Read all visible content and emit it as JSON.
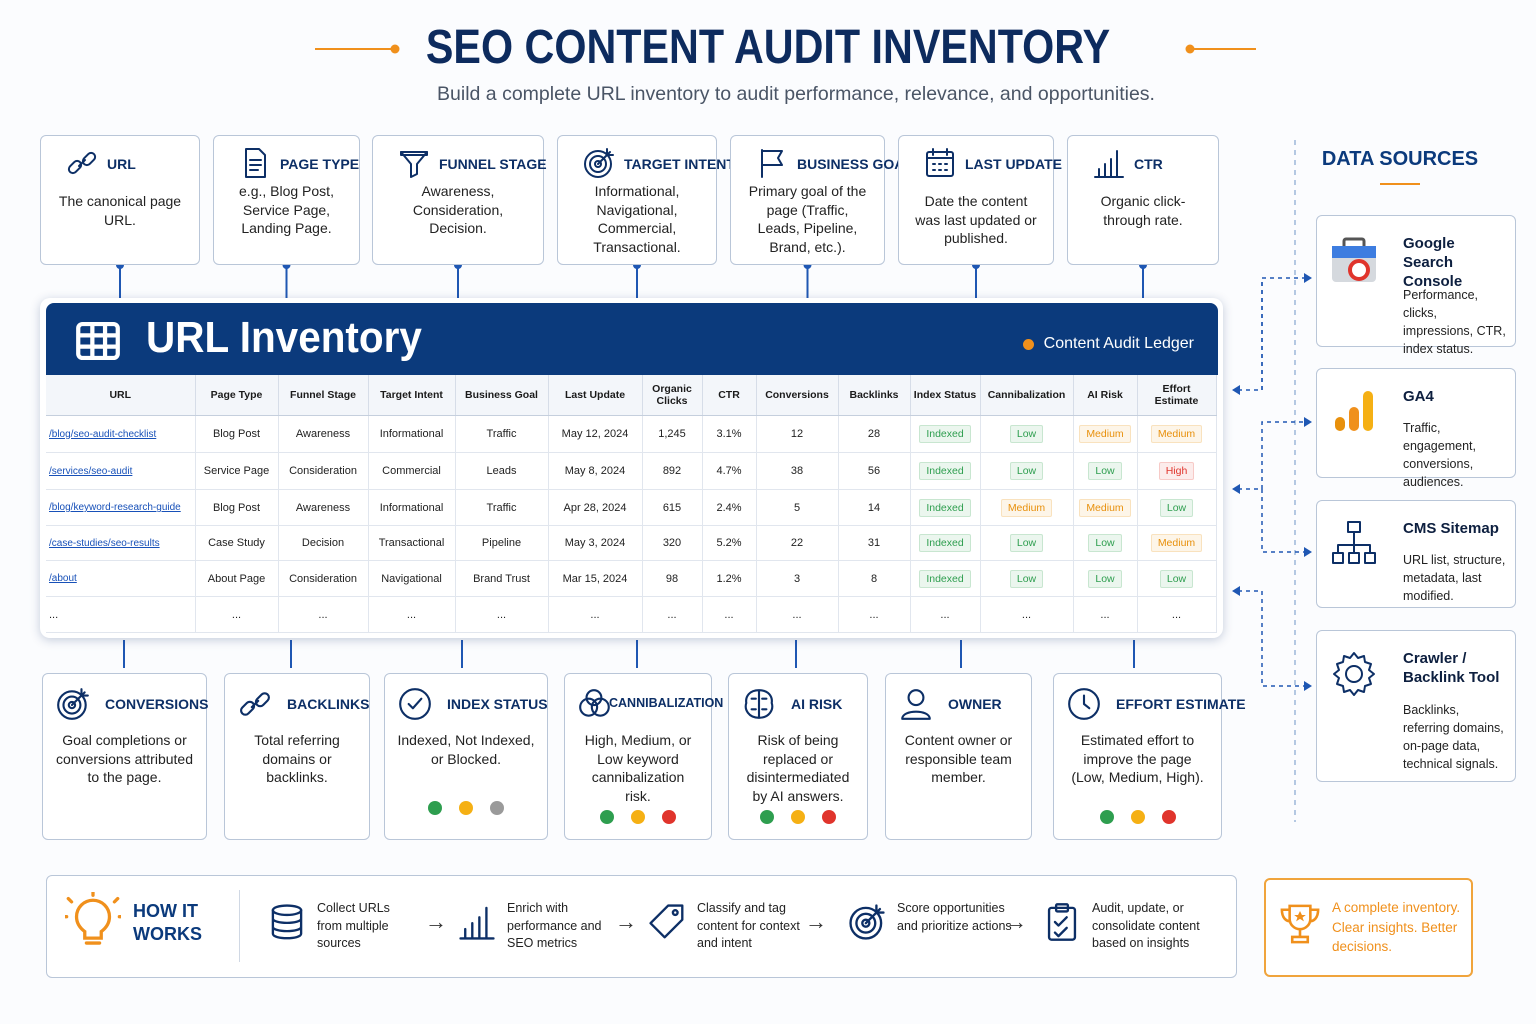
{
  "header": {
    "title": "SEO CONTENT AUDIT INVENTORY",
    "subtitle": "Build a complete URL inventory to audit performance, relevance, and opportunities."
  },
  "top_fields": [
    {
      "title": "URL",
      "description": "The canonical page URL."
    },
    {
      "title": "PAGE TYPE",
      "description": "e.g., Blog Post, Service Page, Landing Page."
    },
    {
      "title": "FUNNEL STAGE",
      "description": "Awareness, Consideration, Decision."
    },
    {
      "title": "TARGET INTENT",
      "description": "Informational, Navigational, Commercial, Transactional."
    },
    {
      "title": "BUSINESS GOAL",
      "description": "Primary goal of the page (Traffic, Leads, Pipeline, Brand, etc.)."
    },
    {
      "title": "LAST UPDATE",
      "description": "Date the content was last updated or published."
    },
    {
      "title": "CTR",
      "description": "Organic click-through rate."
    }
  ],
  "inventory": {
    "title": "URL Inventory",
    "legend": "Content Audit Ledger",
    "columns": [
      "URL",
      "Page Type",
      "Funnel Stage",
      "Target Intent",
      "Business Goal",
      "Last Update",
      "Organic Clicks",
      "CTR",
      "Conversions",
      "Backlinks",
      "Index Status",
      "Cannibalization",
      "AI Risk",
      "Effort Estimate"
    ],
    "rows": [
      [
        "/blog/seo-audit-checklist",
        "Blog Post",
        "Awareness",
        "Informational",
        "Traffic",
        "May 12, 2024",
        "1,245",
        "3.1%",
        "12",
        "28",
        "Indexed",
        "Low",
        "Medium",
        "Medium"
      ],
      [
        "/services/seo-audit",
        "Service Page",
        "Consideration",
        "Commercial",
        "Leads",
        "May 8, 2024",
        "892",
        "4.7%",
        "38",
        "56",
        "Indexed",
        "Low",
        "Low",
        "High"
      ],
      [
        "/blog/keyword-research-guide",
        "Blog Post",
        "Awareness",
        "Informational",
        "Traffic",
        "Apr 28, 2024",
        "615",
        "2.4%",
        "5",
        "14",
        "Indexed",
        "Medium",
        "Medium",
        "Low"
      ],
      [
        "/case-studies/seo-results",
        "Case Study",
        "Decision",
        "Transactional",
        "Pipeline",
        "May 3, 2024",
        "320",
        "5.2%",
        "22",
        "31",
        "Indexed",
        "Low",
        "Low",
        "Medium"
      ],
      [
        "/about",
        "About Page",
        "Consideration",
        "Navigational",
        "Brand Trust",
        "Mar 15, 2024",
        "98",
        "1.2%",
        "3",
        "8",
        "Indexed",
        "Low",
        "Low",
        "Low"
      ],
      [
        "...",
        "...",
        "...",
        "...",
        "...",
        "...",
        "...",
        "...",
        "...",
        "...",
        "...",
        "...",
        "...",
        "..."
      ]
    ],
    "badge_colors": {
      "Indexed": "#2e9e4f",
      "Low": "#2e9e4f",
      "Medium": "#e8900c",
      "High": "#e0342c"
    }
  },
  "bottom_fields": [
    {
      "title": "CONVERSIONS",
      "description": "Goal completions or conversions attributed to the page."
    },
    {
      "title": "BACKLINKS",
      "description": "Total referring domains or backlinks."
    },
    {
      "title": "INDEX STATUS",
      "description": "Indexed, Not Indexed, or Blocked.",
      "dots": [
        "#2e9e4f",
        "#f5b014",
        "#9a9a9a"
      ]
    },
    {
      "title": "CANNIBALIZATION",
      "description": "High, Medium, or Low keyword cannibalization risk.",
      "dots": [
        "#2e9e4f",
        "#f5b014",
        "#e0342c"
      ]
    },
    {
      "title": "AI RISK",
      "description": "Risk of being replaced or disintermediated by AI answers.",
      "dots": [
        "#2e9e4f",
        "#f5b014",
        "#e0342c"
      ]
    },
    {
      "title": "OWNER",
      "description": "Content owner or responsible team member."
    },
    {
      "title": "EFFORT ESTIMATE",
      "description": "Estimated effort to improve the page (Low, Medium, High).",
      "dots": [
        "#2e9e4f",
        "#f5b014",
        "#e0342c"
      ]
    }
  ],
  "data_sources": {
    "title": "DATA SOURCES",
    "items": [
      {
        "name": "Google Search Console",
        "description": "Performance, clicks, impressions, CTR, index status."
      },
      {
        "name": "GA4",
        "description": "Traffic, engagement, conversions, audiences."
      },
      {
        "name": "CMS Sitemap",
        "description": "URL list, structure, metadata, last modified."
      },
      {
        "name": "Crawler / Backlink Tool",
        "description": "Backlinks, referring domains, on-page data, technical signals."
      }
    ]
  },
  "how_it_works": {
    "title": "HOW IT WORKS",
    "steps": [
      "Collect URLs from multiple sources",
      "Enrich with performance and SEO metrics",
      "Classify and tag content for context and intent",
      "Score opportunities and prioritize actions",
      "Audit, update, or consolidate content based on insights"
    ]
  },
  "callout": "A complete inventory. Clear insights. Better decisions."
}
